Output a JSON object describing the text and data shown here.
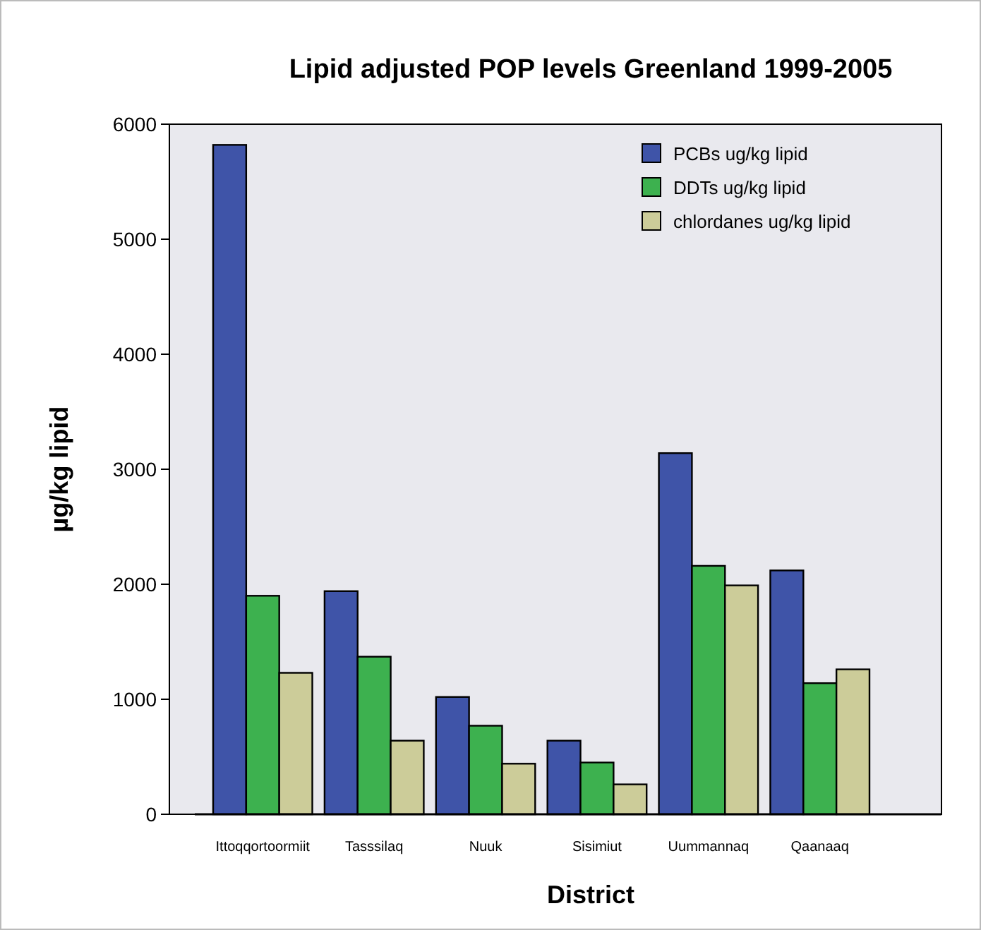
{
  "chart_data": {
    "type": "bar",
    "title": "Lipid adjusted POP levels Greenland 1999-2005",
    "xlabel": "District",
    "ylabel": "µg/kg lipid",
    "categories": [
      "Ittoqqortoormiit",
      "Tasssilaq",
      "Nuuk",
      "Sisimiut",
      "Uummannaq",
      "Qaanaaq"
    ],
    "series": [
      {
        "name": "PCBs ug/kg lipid",
        "color": "#3f54a8",
        "values": [
          5820,
          1940,
          1020,
          640,
          3140,
          2120
        ]
      },
      {
        "name": "DDTs ug/kg lipid",
        "color": "#3db14f",
        "values": [
          1900,
          1370,
          770,
          450,
          2160,
          1140
        ]
      },
      {
        "name": "chlordanes ug/kg lipid",
        "color": "#cccc99",
        "values": [
          1230,
          640,
          440,
          260,
          1990,
          1260
        ]
      }
    ],
    "ylim": [
      0,
      6000
    ],
    "yticks": [
      0,
      1000,
      2000,
      3000,
      4000,
      5000,
      6000
    ],
    "grid": false,
    "legend": "top right"
  }
}
